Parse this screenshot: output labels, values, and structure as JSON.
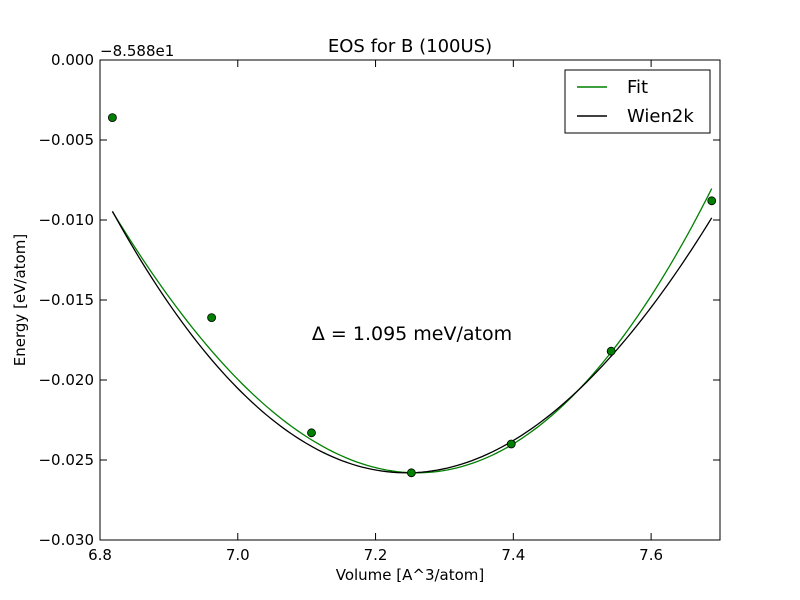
{
  "chart_data": {
    "type": "line",
    "title": "EOS for B (100US)",
    "xlabel": "Volume [A^3/atom]",
    "ylabel": "Energy [eV/atom]",
    "y_offset_label": "−8.588e1",
    "xlim": [
      6.8,
      7.7
    ],
    "ylim": [
      -0.03,
      0.0
    ],
    "x_ticks": [
      6.8,
      7.0,
      7.2,
      7.4,
      7.6
    ],
    "x_tick_labels": [
      "6.8",
      "7.0",
      "7.2",
      "7.4",
      "7.6"
    ],
    "y_ticks": [
      0.0,
      -0.005,
      -0.01,
      -0.015,
      -0.02,
      -0.025,
      -0.03
    ],
    "y_tick_labels": [
      "0.000",
      "−0.005",
      "−0.010",
      "−0.015",
      "−0.020",
      "−0.025",
      "−0.030"
    ],
    "grid": false,
    "legend_position": "top-right",
    "annotation": "Δ = 1.095 meV/atom",
    "series": [
      {
        "name": "Fit",
        "kind": "polynomial_fit",
        "color": "#008000",
        "v0": 7.26,
        "e0": -0.0258,
        "a2": 0.0904,
        "a3": 0.0154,
        "x_range": [
          6.818,
          7.688
        ]
      },
      {
        "name": "Wien2k",
        "kind": "polynomial_fit",
        "color": "#000000",
        "v0": 7.245,
        "e0": -0.0258,
        "a2": 0.0855,
        "a3": -0.0097,
        "x_range": [
          6.818,
          7.688
        ]
      }
    ],
    "points": {
      "color": "#008000",
      "x": [
        6.818,
        6.962,
        7.107,
        7.252,
        7.397,
        7.542,
        7.688
      ],
      "y": [
        -0.0036,
        -0.0161,
        -0.0233,
        -0.0258,
        -0.024,
        -0.0182,
        -0.0088
      ]
    }
  }
}
